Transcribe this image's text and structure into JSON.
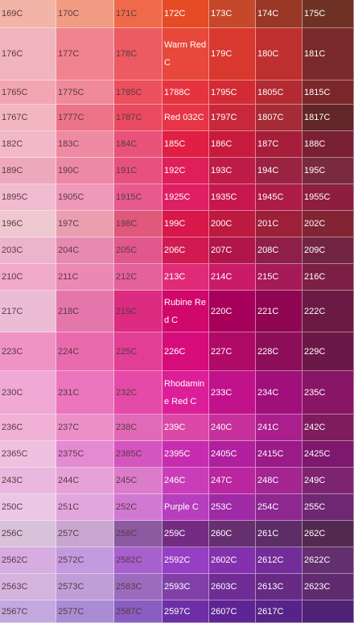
{
  "swatch_rows": [
    {
      "cells": [
        {
          "label": "169C",
          "bg": "#f2b4a6"
        },
        {
          "label": "170C",
          "bg": "#f39c84"
        },
        {
          "label": "171C",
          "bg": "#f06a4a"
        },
        {
          "label": "172C",
          "bg": "#e54b24"
        },
        {
          "label": "173C",
          "bg": "#c5482a"
        },
        {
          "label": "174C",
          "bg": "#9a3626"
        },
        {
          "label": "175C",
          "bg": "#6e3224"
        }
      ]
    },
    {
      "cells": [
        {
          "label": "176C",
          "bg": "#f2b4bc"
        },
        {
          "label": "177C",
          "bg": "#f0838e"
        },
        {
          "label": "178C",
          "bg": "#ec5a62"
        },
        {
          "label": "Warm Red C",
          "bg": "#e8473b"
        },
        {
          "label": "179C",
          "bg": "#d9382e"
        },
        {
          "label": "180C",
          "bg": "#be3030"
        },
        {
          "label": "181C",
          "bg": "#7a2a2a"
        }
      ]
    },
    {
      "cells": [
        {
          "label": "1765C",
          "bg": "#f2a6b2"
        },
        {
          "label": "1775C",
          "bg": "#f0899a"
        },
        {
          "label": "1785C",
          "bg": "#ec4f5e"
        },
        {
          "label": "1788C",
          "bg": "#e6343f"
        },
        {
          "label": "1795C",
          "bg": "#d32b36"
        },
        {
          "label": "1805C",
          "bg": "#b22a32"
        },
        {
          "label": "1815C",
          "bg": "#7c262a"
        }
      ]
    },
    {
      "cells": [
        {
          "label": "1767C",
          "bg": "#f1b6c0"
        },
        {
          "label": "1777C",
          "bg": "#ed7388"
        },
        {
          "label": "1787C",
          "bg": "#ea4a5f"
        },
        {
          "label": "Red 032C",
          "bg": "#e73446"
        },
        {
          "label": "1797C",
          "bg": "#c9273a"
        },
        {
          "label": "1807C",
          "bg": "#a52c36"
        },
        {
          "label": "1817C",
          "bg": "#612628"
        }
      ]
    },
    {
      "cells": [
        {
          "label": "182C",
          "bg": "#f2b8c8"
        },
        {
          "label": "183C",
          "bg": "#ef8aa3"
        },
        {
          "label": "184C",
          "bg": "#e9537a"
        },
        {
          "label": "185C",
          "bg": "#e11f45"
        },
        {
          "label": "186C",
          "bg": "#c71a3c"
        },
        {
          "label": "187C",
          "bg": "#a61e3a"
        },
        {
          "label": "188C",
          "bg": "#7a2034"
        }
      ]
    },
    {
      "cells": [
        {
          "label": "189C",
          "bg": "#eea8bd"
        },
        {
          "label": "190C",
          "bg": "#ed88a6"
        },
        {
          "label": "191C",
          "bg": "#e8507f"
        },
        {
          "label": "192C",
          "bg": "#df1f5a"
        },
        {
          "label": "193C",
          "bg": "#be1c47"
        },
        {
          "label": "194C",
          "bg": "#9b2342"
        },
        {
          "label": "195C",
          "bg": "#7a2a3e"
        }
      ]
    },
    {
      "cells": [
        {
          "label": "1895C",
          "bg": "#f1bcd0"
        },
        {
          "label": "1905C",
          "bg": "#ef98b8"
        },
        {
          "label": "1915C",
          "bg": "#e65a8e"
        },
        {
          "label": "1925C",
          "bg": "#df1f63"
        },
        {
          "label": "1935C",
          "bg": "#c8174e"
        },
        {
          "label": "1945C",
          "bg": "#ad1c46"
        },
        {
          "label": "1955C",
          "bg": "#8e1e40"
        }
      ]
    },
    {
      "cells": [
        {
          "label": "196C",
          "bg": "#eec7cf"
        },
        {
          "label": "197C",
          "bg": "#e99fb0"
        },
        {
          "label": "198C",
          "bg": "#e0587a"
        },
        {
          "label": "199C",
          "bg": "#d8184a"
        },
        {
          "label": "200C",
          "bg": "#bd1a40"
        },
        {
          "label": "201C",
          "bg": "#9b2038"
        },
        {
          "label": "202C",
          "bg": "#822434"
        }
      ]
    },
    {
      "cells": [
        {
          "label": "203C",
          "bg": "#edb3cb"
        },
        {
          "label": "204C",
          "bg": "#e88ab0"
        },
        {
          "label": "205C",
          "bg": "#e0588c"
        },
        {
          "label": "206C",
          "bg": "#d21a52"
        },
        {
          "label": "207C",
          "bg": "#b0164a"
        },
        {
          "label": "208C",
          "bg": "#8e1f48"
        },
        {
          "label": "209C",
          "bg": "#722442"
        }
      ]
    },
    {
      "cells": [
        {
          "label": "210C",
          "bg": "#f0a9c8"
        },
        {
          "label": "211C",
          "bg": "#ec88b4"
        },
        {
          "label": "212C",
          "bg": "#e5619c"
        },
        {
          "label": "213C",
          "bg": "#e02b78"
        },
        {
          "label": "214C",
          "bg": "#cb1a68"
        },
        {
          "label": "215C",
          "bg": "#a51a58"
        },
        {
          "label": "216C",
          "bg": "#7c1f44"
        }
      ]
    },
    {
      "cells": [
        {
          "label": "217C",
          "bg": "#ecbcd6"
        },
        {
          "label": "218C",
          "bg": "#e576ac"
        },
        {
          "label": "219C",
          "bg": "#dc2b80"
        },
        {
          "label": "Rubine Red C",
          "bg": "#d1086c"
        },
        {
          "label": "220C",
          "bg": "#a6005a"
        },
        {
          "label": "221C",
          "bg": "#8e0651"
        },
        {
          "label": "222C",
          "bg": "#6b1a43"
        }
      ]
    },
    {
      "cells": [
        {
          "label": "223C",
          "bg": "#ee93c3"
        },
        {
          "label": "224C",
          "bg": "#ea6bad"
        },
        {
          "label": "225C",
          "bg": "#e23e95"
        },
        {
          "label": "226C",
          "bg": "#d60c7a"
        },
        {
          "label": "227C",
          "bg": "#ae0a66"
        },
        {
          "label": "228C",
          "bg": "#8c0e58"
        },
        {
          "label": "229C",
          "bg": "#6a1848"
        }
      ]
    },
    {
      "cells": [
        {
          "label": "230C",
          "bg": "#f0a8d4"
        },
        {
          "label": "231C",
          "bg": "#eb76bd"
        },
        {
          "label": "232C",
          "bg": "#e54aa8"
        },
        {
          "label": "Rhodamine Red C",
          "bg": "#dc1e98"
        },
        {
          "label": "233C",
          "bg": "#c1128c"
        },
        {
          "label": "234C",
          "bg": "#a0107a"
        },
        {
          "label": "235C",
          "bg": "#891566"
        }
      ]
    },
    {
      "cells": [
        {
          "label": "236C",
          "bg": "#f1b0d6"
        },
        {
          "label": "237C",
          "bg": "#ec8fc8"
        },
        {
          "label": "238C",
          "bg": "#e16ab8"
        },
        {
          "label": "239C",
          "bg": "#db48a8"
        },
        {
          "label": "240C",
          "bg": "#c7309a"
        },
        {
          "label": "241C",
          "bg": "#ab1f8c"
        },
        {
          "label": "242C",
          "bg": "#7f1c5e"
        }
      ]
    },
    {
      "cells": [
        {
          "label": "2365C",
          "bg": "#f0c0e0"
        },
        {
          "label": "2375C",
          "bg": "#e48ad2"
        },
        {
          "label": "2385C",
          "bg": "#d555bf"
        },
        {
          "label": "2395C",
          "bg": "#c72cb0"
        },
        {
          "label": "2405C",
          "bg": "#b01f9e"
        },
        {
          "label": "2415C",
          "bg": "#9a1a88"
        },
        {
          "label": "2425C",
          "bg": "#7e176e"
        }
      ]
    },
    {
      "cells": [
        {
          "label": "243C",
          "bg": "#eab8de"
        },
        {
          "label": "244C",
          "bg": "#e6a2d8"
        },
        {
          "label": "245C",
          "bg": "#db7ccb"
        },
        {
          "label": "246C",
          "bg": "#c93eb8"
        },
        {
          "label": "247C",
          "bg": "#b9269f"
        },
        {
          "label": "248C",
          "bg": "#a32590"
        },
        {
          "label": "249C",
          "bg": "#7d2470"
        }
      ]
    },
    {
      "cells": [
        {
          "label": "250C",
          "bg": "#ebc6e5"
        },
        {
          "label": "251C",
          "bg": "#e1a6dd"
        },
        {
          "label": "252C",
          "bg": "#d179d2"
        },
        {
          "label": "Purple C",
          "bg": "#b73ebc"
        },
        {
          "label": "253C",
          "bg": "#a02aa6"
        },
        {
          "label": "254C",
          "bg": "#8c2890"
        },
        {
          "label": "255C",
          "bg": "#6e2772"
        }
      ]
    },
    {
      "cells": [
        {
          "label": "256C",
          "bg": "#d7c2da"
        },
        {
          "label": "257C",
          "bg": "#c8a6cf"
        },
        {
          "label": "258C",
          "bg": "#8d5aa2"
        },
        {
          "label": "259C",
          "bg": "#742c83"
        },
        {
          "label": "260C",
          "bg": "#662f6f"
        },
        {
          "label": "261C",
          "bg": "#5c2d66"
        },
        {
          "label": "262C",
          "bg": "#54294f"
        }
      ]
    },
    {
      "cells": [
        {
          "label": "2562C",
          "bg": "#d7ace0"
        },
        {
          "label": "2572C",
          "bg": "#c49ade"
        },
        {
          "label": "2582C",
          "bg": "#a860cf"
        },
        {
          "label": "2592C",
          "bg": "#963ec4"
        },
        {
          "label": "2602C",
          "bg": "#8331ae"
        },
        {
          "label": "2612C",
          "bg": "#732d98"
        },
        {
          "label": "2622C",
          "bg": "#642f6e"
        }
      ]
    },
    {
      "cells": [
        {
          "label": "2563C",
          "bg": "#d4b3de"
        },
        {
          "label": "2573C",
          "bg": "#bf9ed8"
        },
        {
          "label": "2583C",
          "bg": "#9b6bbd"
        },
        {
          "label": "2593C",
          "bg": "#8040a8"
        },
        {
          "label": "2603C",
          "bg": "#6f2c94"
        },
        {
          "label": "2613C",
          "bg": "#662a84"
        },
        {
          "label": "2623C",
          "bg": "#602a6e"
        }
      ]
    },
    {
      "cells": [
        {
          "label": "2567C",
          "bg": "#c4a8df"
        },
        {
          "label": "2577C",
          "bg": "#a98cd4"
        },
        {
          "label": "2587C",
          "bg": "#8a5dc2"
        },
        {
          "label": "2597C",
          "bg": "#6d2ea6"
        },
        {
          "label": "2607C",
          "bg": "#5e2494"
        },
        {
          "label": "2617C",
          "bg": "#562489"
        },
        {
          "label": "",
          "bg": "#4e2274"
        }
      ]
    }
  ]
}
